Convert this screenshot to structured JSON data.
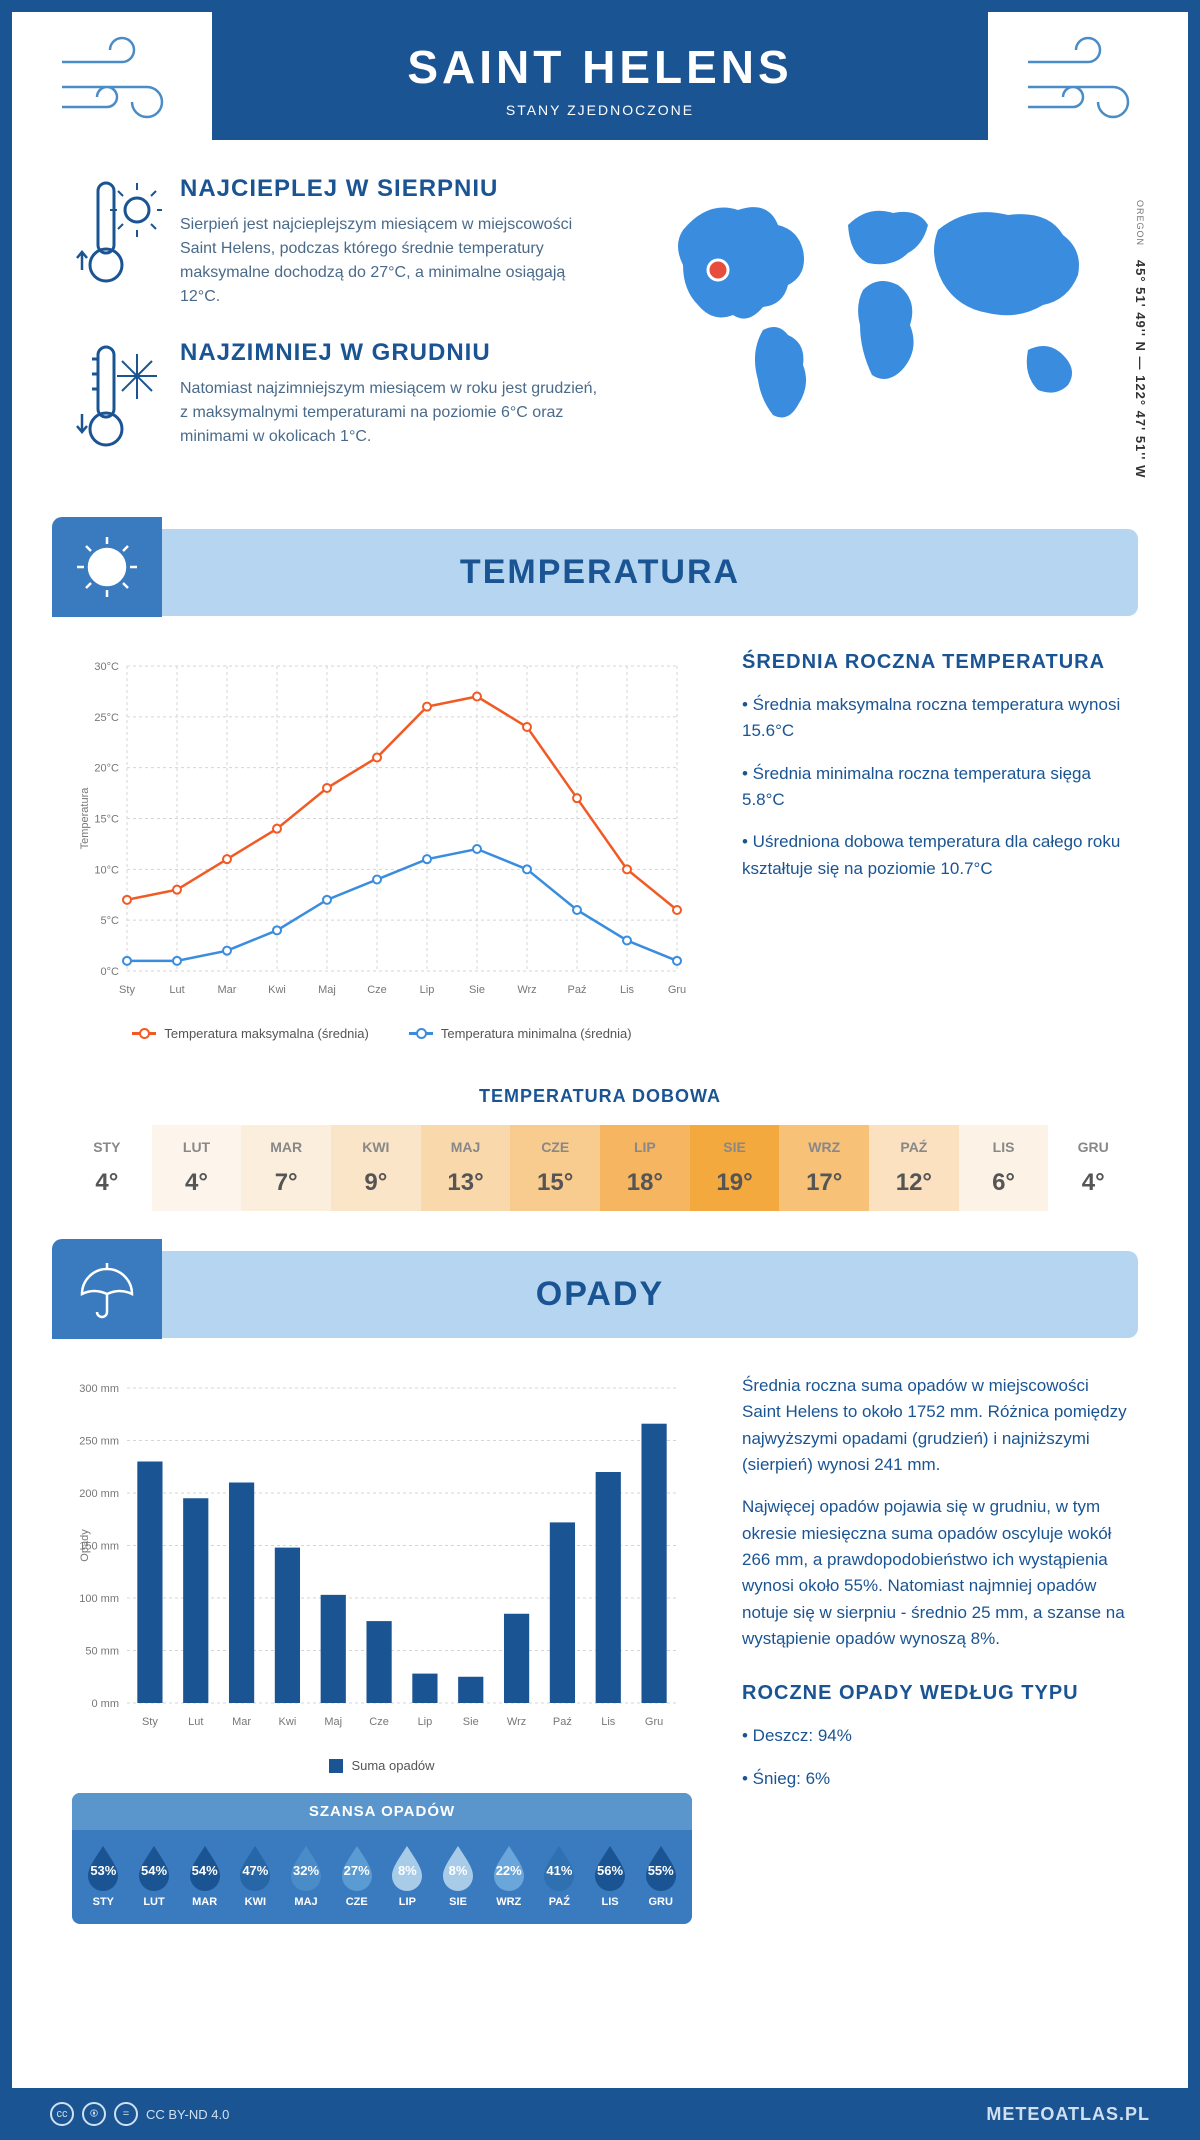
{
  "header": {
    "title": "SAINT HELENS",
    "subtitle": "STANY ZJEDNOCZONE"
  },
  "location": {
    "coords": "45° 51' 49'' N — 122° 47' 51'' W",
    "region": "OREGON",
    "marker_color": "#e74c3c",
    "map_color": "#3a8dde"
  },
  "intro": {
    "warm": {
      "title": "NAJCIEPLEJ W SIERPNIU",
      "text": "Sierpień jest najcieplejszym miesiącem w miejscowości Saint Helens, podczas którego średnie temperatury maksymalne dochodzą do 27°C, a minimalne osiągają 12°C."
    },
    "cold": {
      "title": "NAJZIMNIEJ W GRUDNIU",
      "text": "Natomiast najzimniejszym miesiącem w roku jest grudzień, z maksymalnymi temperaturami na poziomie 6°C oraz minimami w okolicach 1°C."
    }
  },
  "temp_section": {
    "title": "TEMPERATURA",
    "aside_title": "ŚREDNIA ROCZNA TEMPERATURA",
    "bullets": [
      "• Średnia maksymalna roczna temperatura wynosi 15.6°C",
      "• Średnia minimalna roczna temperatura sięga 5.8°C",
      "• Uśredniona dobowa temperatura dla całego roku kształtuje się na poziomie 10.7°C"
    ],
    "chart": {
      "type": "line",
      "ylabel": "Temperatura",
      "months": [
        "Sty",
        "Lut",
        "Mar",
        "Kwi",
        "Maj",
        "Cze",
        "Lip",
        "Sie",
        "Wrz",
        "Paź",
        "Lis",
        "Gru"
      ],
      "max_series": {
        "label": "Temperatura maksymalna (średnia)",
        "color": "#f15a24",
        "values": [
          7,
          8,
          11,
          14,
          18,
          21,
          26,
          27,
          24,
          17,
          10,
          6
        ]
      },
      "min_series": {
        "label": "Temperatura minimalna (średnia)",
        "color": "#3a8dde",
        "values": [
          1,
          1,
          2,
          4,
          7,
          9,
          11,
          12,
          10,
          6,
          3,
          1
        ]
      },
      "ylim": [
        0,
        30
      ],
      "ytick_step": 5,
      "grid_color": "#d5d5d5",
      "background": "#ffffff",
      "label_fontsize": 11
    },
    "daily_title": "TEMPERATURA DOBOWA",
    "daily": {
      "months": [
        "STY",
        "LUT",
        "MAR",
        "KWI",
        "MAJ",
        "CZE",
        "LIP",
        "SIE",
        "WRZ",
        "PAŹ",
        "LIS",
        "GRU"
      ],
      "values": [
        "4°",
        "4°",
        "7°",
        "9°",
        "13°",
        "15°",
        "18°",
        "19°",
        "17°",
        "12°",
        "6°",
        "4°"
      ],
      "bg_colors": [
        "#ffffff",
        "#fdf5ec",
        "#fceedd",
        "#fbe5c8",
        "#f9d8ab",
        "#f8cb8e",
        "#f6b560",
        "#f4a93f",
        "#f7c178",
        "#fbe1c0",
        "#fdf2e6",
        "#ffffff"
      ]
    }
  },
  "precip_section": {
    "title": "OPADY",
    "para1": "Średnia roczna suma opadów w miejscowości Saint Helens to około 1752 mm. Różnica pomiędzy najwyższymi opadami (grudzień) i najniższymi (sierpień) wynosi 241 mm.",
    "para2": "Najwięcej opadów pojawia się w grudniu, w tym okresie miesięczna suma opadów oscyluje wokół 266 mm, a prawdopodobieństwo ich wystąpienia wynosi około 55%. Natomiast najmniej opadów notuje się w sierpniu - średnio 25 mm, a szanse na wystąpienie opadów wynoszą 8%.",
    "chart": {
      "type": "bar",
      "ylabel": "Opady",
      "legend": "Suma opadów",
      "months": [
        "Sty",
        "Lut",
        "Mar",
        "Kwi",
        "Maj",
        "Cze",
        "Lip",
        "Sie",
        "Wrz",
        "Paź",
        "Lis",
        "Gru"
      ],
      "values": [
        230,
        195,
        210,
        148,
        103,
        78,
        28,
        25,
        85,
        172,
        220,
        266
      ],
      "bar_color": "#1a5493",
      "ylim": [
        0,
        300
      ],
      "ytick_step": 50,
      "grid_color": "#d5d5d5",
      "bar_width": 0.55,
      "label_fontsize": 11
    },
    "chance": {
      "title": "SZANSA OPADÓW",
      "months": [
        "STY",
        "LUT",
        "MAR",
        "KWI",
        "MAJ",
        "CZE",
        "LIP",
        "SIE",
        "WRZ",
        "PAŹ",
        "LIS",
        "GRU"
      ],
      "values": [
        "53%",
        "54%",
        "54%",
        "47%",
        "32%",
        "27%",
        "8%",
        "8%",
        "22%",
        "41%",
        "56%",
        "55%"
      ],
      "drop_colors": [
        "#1a5493",
        "#1a5493",
        "#1a5493",
        "#2766a7",
        "#4a8cc7",
        "#5a9bd4",
        "#a8cce8",
        "#a8cce8",
        "#6aa6d9",
        "#2f70b0",
        "#1a5493",
        "#1a5493"
      ]
    },
    "type_title": "ROCZNE OPADY WEDŁUG TYPU",
    "types": [
      "• Deszcz: 94%",
      "• Śnieg: 6%"
    ]
  },
  "footer": {
    "license": "CC BY-ND 4.0",
    "brand": "METEOATLAS.PL"
  },
  "palette": {
    "primary": "#1a5493",
    "light": "#b5d5f0",
    "mid": "#3a7bbf"
  }
}
